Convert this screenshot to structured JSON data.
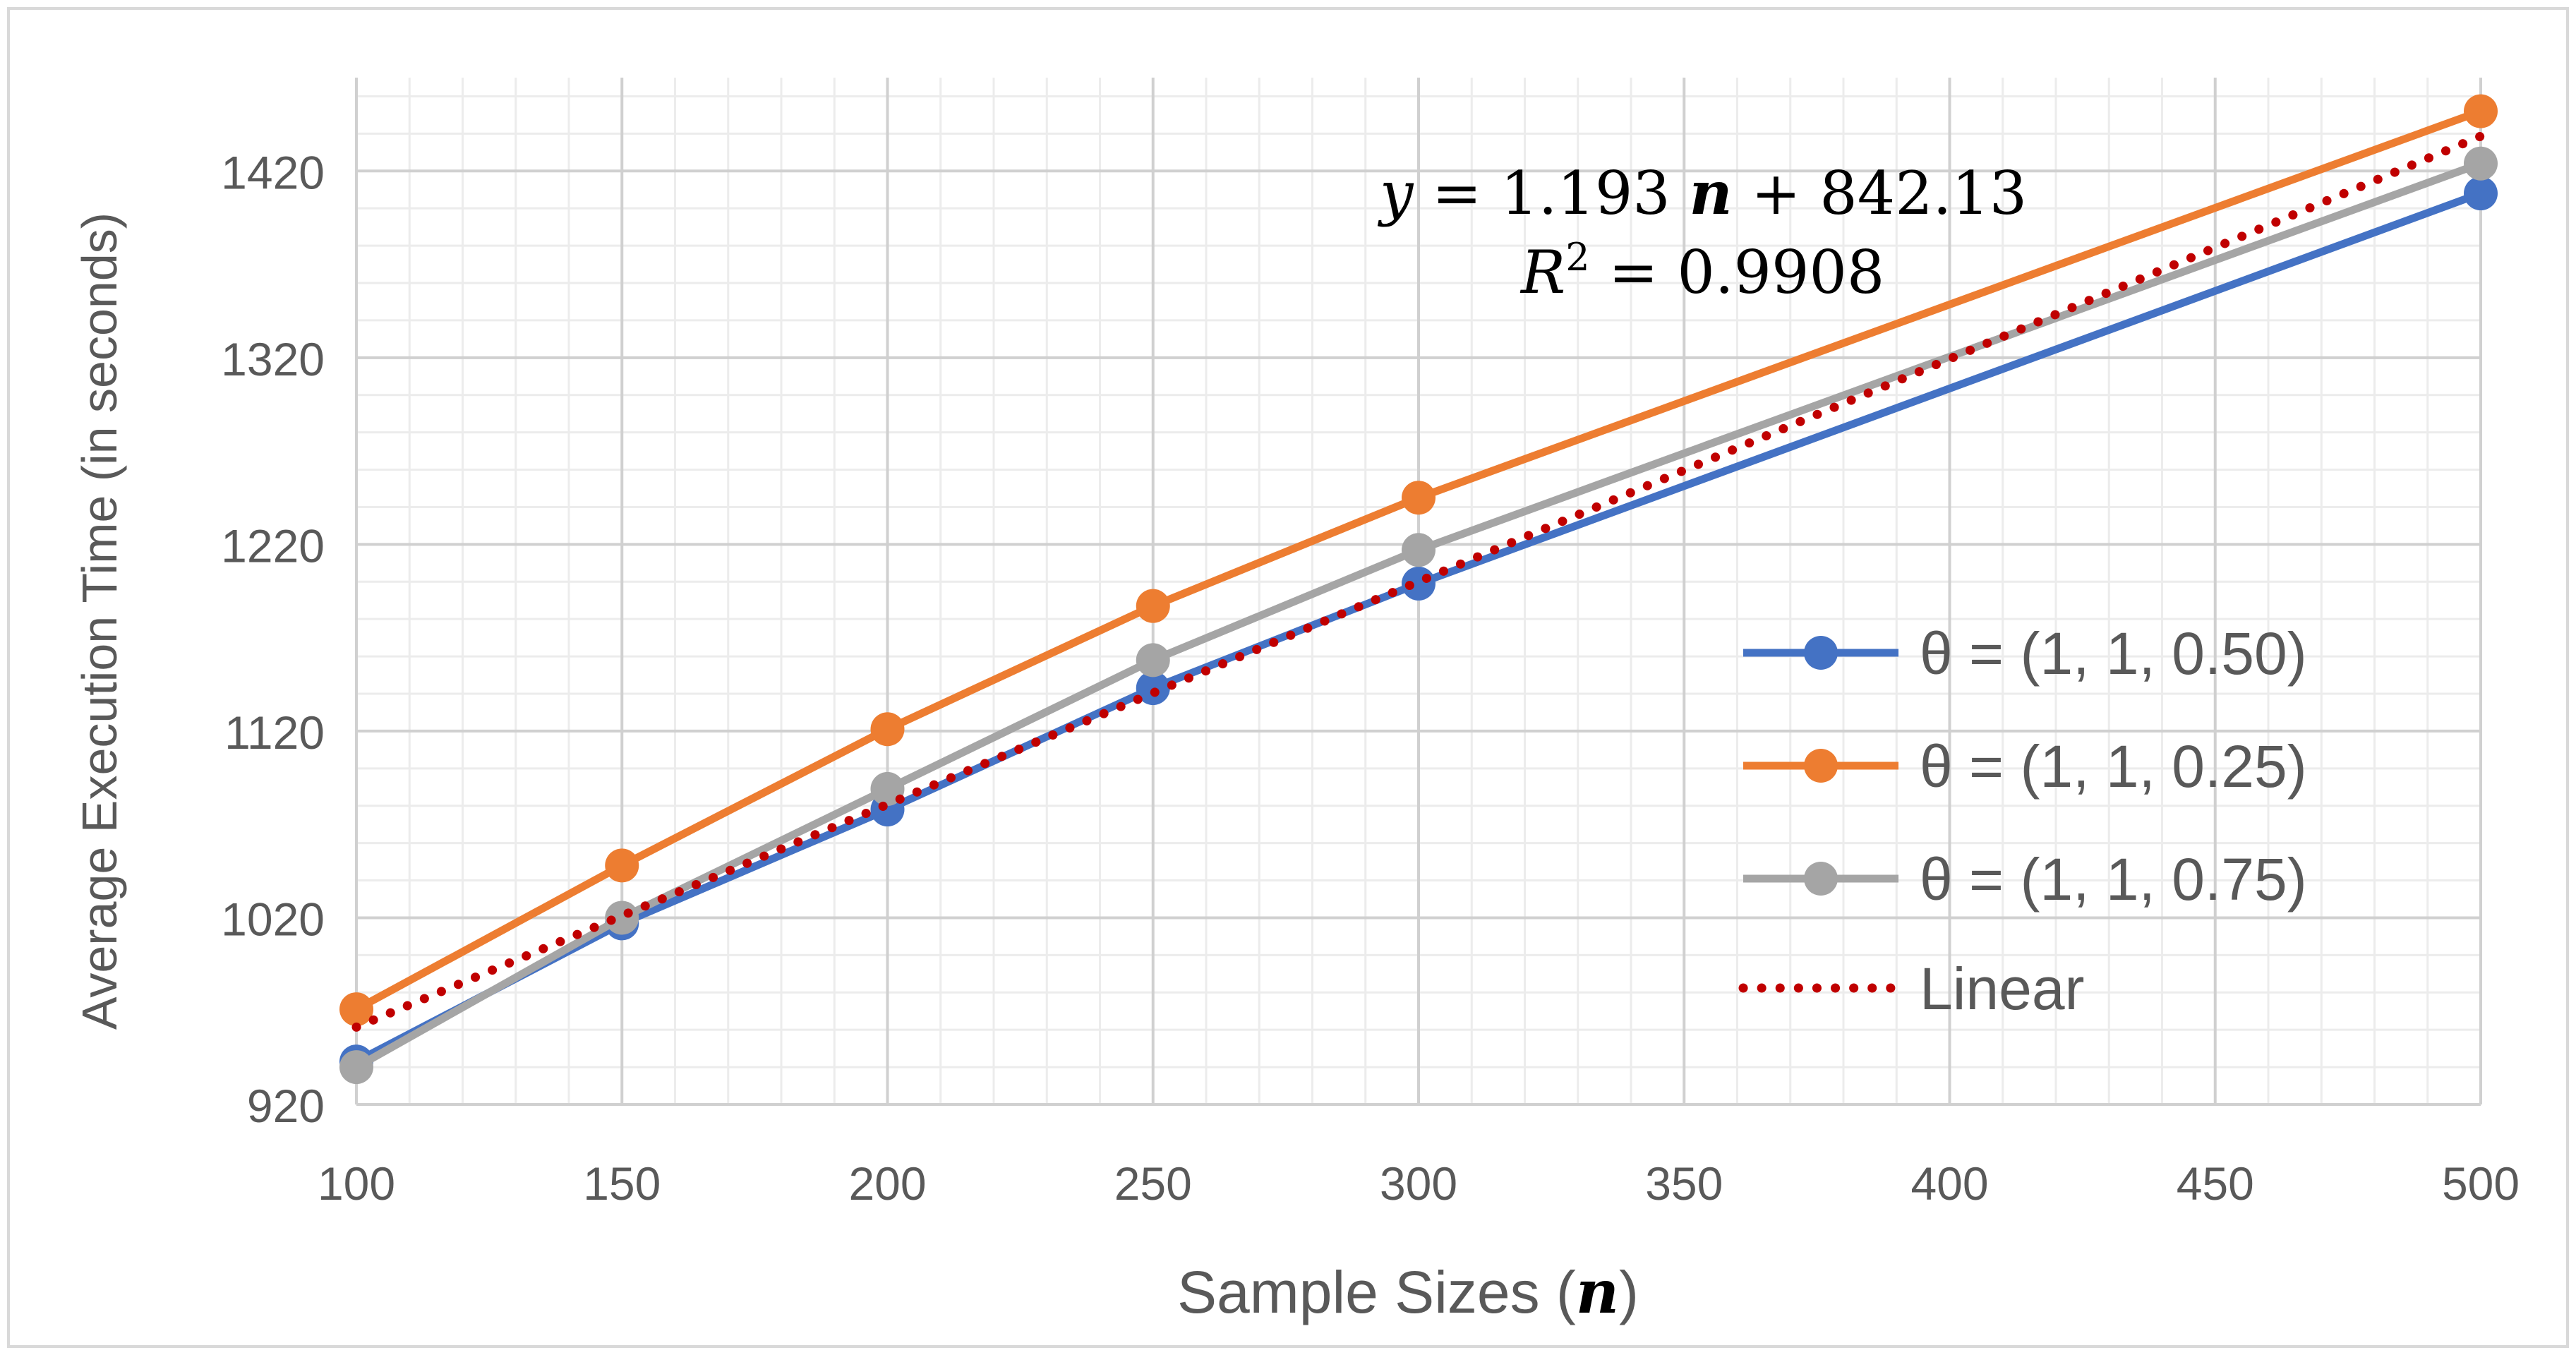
{
  "chart_data": {
    "type": "line",
    "title": "",
    "xlabel": "Sample Sizes (",
    "xlabel_symbol": "n",
    "xlabel_close": ")",
    "ylabel": "Average Execution Time (in seconds)",
    "x": [
      100,
      150,
      200,
      250,
      300,
      500
    ],
    "xlim": [
      100,
      500
    ],
    "ylim": [
      920,
      1470
    ],
    "x_ticks": [
      100,
      150,
      200,
      250,
      300,
      350,
      400,
      450,
      500
    ],
    "y_ticks": [
      920,
      1020,
      1120,
      1220,
      1320,
      1420
    ],
    "grid": true,
    "legend_position": "right",
    "series": [
      {
        "name": "θ = (1, 1, 0.50)",
        "color": "#4472C4",
        "values": [
          943,
          1017,
          1078,
          1143,
          1199,
          1408
        ]
      },
      {
        "name": "θ = (1, 1, 0.25)",
        "color": "#ED7D31",
        "values": [
          971,
          1048,
          1121,
          1187,
          1245,
          1452
        ]
      },
      {
        "name": "θ = (1, 1, 0.75)",
        "color": "#A5A5A5",
        "values": [
          940,
          1020,
          1089,
          1158,
          1217,
          1424
        ]
      }
    ],
    "trendline": {
      "name": "Linear",
      "color": "#C00000",
      "slope": 1.193,
      "intercept": 842.13,
      "x_range": [
        100,
        500
      ]
    },
    "annotation": {
      "equation_lhs": "y",
      "equation_eq": " = 1.193 ",
      "equation_var": "n",
      "equation_rhs": " + 842.13",
      "r2_label": "R",
      "r2_exp": "2",
      "r2_value": " = 0.9908"
    }
  }
}
